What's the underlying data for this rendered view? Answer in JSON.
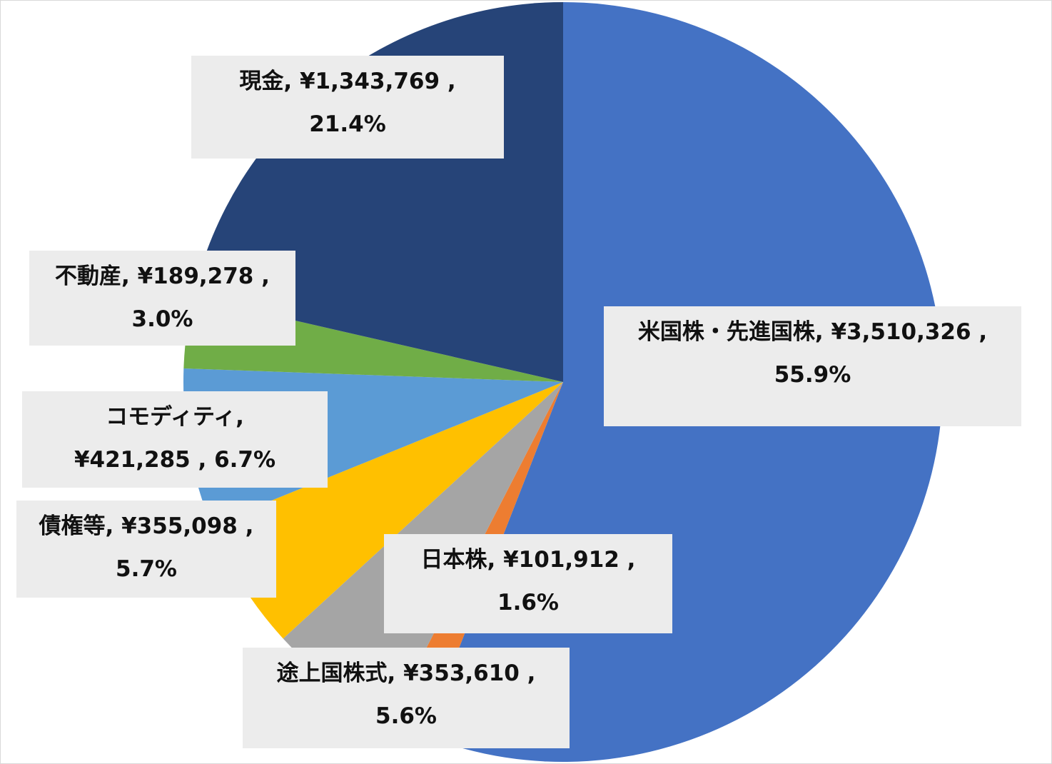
{
  "chart_data": {
    "type": "pie",
    "title": "",
    "start_angle_deg": 0,
    "direction": "clockwise",
    "slices": [
      {
        "name": "米国株・先進国株",
        "value": 3510326,
        "percent": 55.9,
        "color": "#4472C4",
        "label_lines": [
          "米国株・先進国株, ¥3,510,326 ,",
          "55.9%"
        ]
      },
      {
        "name": "日本株",
        "value": 101912,
        "percent": 1.6,
        "color": "#ED7D31",
        "label_lines": [
          "日本株, ¥101,912 ,",
          "1.6%"
        ]
      },
      {
        "name": "途上国株式",
        "value": 353610,
        "percent": 5.6,
        "color": "#A5A5A5",
        "label_lines": [
          "途上国株式, ¥353,610 ,",
          "5.6%"
        ]
      },
      {
        "name": "債権等",
        "value": 355098,
        "percent": 5.7,
        "color": "#FFC000",
        "label_lines": [
          "債権等, ¥355,098 ,",
          "5.7%"
        ]
      },
      {
        "name": "コモディティ",
        "value": 421285,
        "percent": 6.7,
        "color": "#5B9BD5",
        "label_lines": [
          "コモディティ,",
          "¥421,285 , 6.7%"
        ]
      },
      {
        "name": "不動産",
        "value": 189278,
        "percent": 3.0,
        "color": "#70AD47",
        "label_lines": [
          "不動産, ¥189,278 ,",
          "3.0%"
        ]
      },
      {
        "name": "現金",
        "value": 1343769,
        "percent": 21.4,
        "color": "#264478",
        "label_lines": [
          "現金, ¥1,343,769 ,",
          "21.4%"
        ]
      }
    ]
  }
}
